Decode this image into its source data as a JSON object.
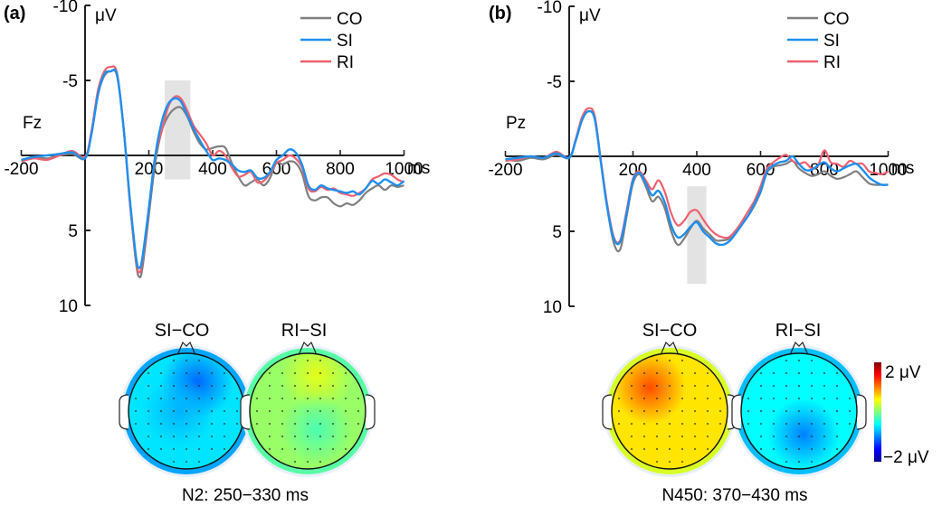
{
  "colors": {
    "CO": "#7f7f7f",
    "SI": "#1e8fef",
    "RI": "#f0606f",
    "shade": "#e3e3e3",
    "axis": "#222222"
  },
  "chart_data": [
    {
      "type": "line",
      "panel": "(a)",
      "electrode": "Fz",
      "xlabel": "ms",
      "ylabel": "μV",
      "xlim": [
        -200,
        1000
      ],
      "ylim": [
        -10,
        10
      ],
      "y_inverted": true,
      "x_ticks": [
        -200,
        0,
        200,
        400,
        600,
        800,
        1000
      ],
      "x_tick_labels": [
        "-200",
        "",
        "200",
        "400",
        "600",
        "800",
        "1000"
      ],
      "y_ticks": [
        -10,
        -5,
        0,
        5,
        10
      ],
      "y_tick_labels": [
        "-10",
        "-5",
        "",
        "5",
        "10"
      ],
      "shaded_window_ms": [
        250,
        330
      ],
      "shaded_window_uv": [
        -5,
        1.6
      ],
      "legend": [
        "CO",
        "SI",
        "RI"
      ],
      "legend_position": "top-right",
      "x": [
        -200,
        -160,
        -120,
        -80,
        -40,
        0,
        20,
        40,
        60,
        80,
        100,
        120,
        140,
        160,
        170,
        180,
        200,
        220,
        240,
        260,
        280,
        300,
        320,
        340,
        360,
        380,
        400,
        420,
        440,
        460,
        480,
        500,
        520,
        540,
        560,
        580,
        600,
        620,
        640,
        660,
        680,
        700,
        720,
        740,
        760,
        780,
        800,
        820,
        840,
        860,
        880,
        900,
        920,
        940,
        960,
        980,
        1000
      ],
      "series": [
        {
          "name": "CO",
          "values": [
            0.3,
            0.1,
            0.2,
            0,
            -0.1,
            0.2,
            -1.5,
            -4.0,
            -5.3,
            -5.6,
            -5.3,
            -2.0,
            3.0,
            7.2,
            8.1,
            7.5,
            4.0,
            0.5,
            -1.6,
            -2.6,
            -3.1,
            -3.2,
            -2.6,
            -1.6,
            -0.8,
            -0.4,
            -0.5,
            -0.6,
            -0.5,
            0.5,
            1.4,
            2.0,
            1.8,
            1.6,
            2.0,
            1.5,
            0.5,
            0.6,
            0.4,
            0.5,
            1.2,
            2.7,
            3.0,
            2.8,
            2.8,
            3.2,
            3.4,
            3.2,
            3.3,
            3.0,
            2.5,
            2.2,
            2.0,
            2.3,
            2.0,
            2.1,
            2.0
          ]
        },
        {
          "name": "SI",
          "values": [
            0.3,
            0.1,
            0.0,
            -0.1,
            -0.2,
            0.2,
            -1.4,
            -4.0,
            -5.4,
            -5.6,
            -5.4,
            -2.0,
            2.8,
            6.8,
            7.5,
            6.8,
            3.5,
            0,
            -2.2,
            -3.4,
            -3.8,
            -3.6,
            -2.7,
            -1.8,
            -1.0,
            -0.3,
            0.3,
            0.2,
            0.3,
            0.6,
            1.0,
            1.1,
            1.0,
            1.5,
            1.5,
            1.1,
            0.3,
            0,
            -0.4,
            -0.2,
            0.6,
            2.0,
            2.3,
            2.0,
            2.2,
            2.3,
            2.4,
            2.5,
            2.4,
            2.6,
            2.2,
            1.7,
            1.9,
            1.6,
            1.8,
            2.0,
            1.7
          ]
        },
        {
          "name": "RI",
          "values": [
            0.4,
            0.2,
            0.3,
            0,
            -0.3,
            0.1,
            -1.6,
            -4.3,
            -5.6,
            -5.9,
            -5.5,
            -2.0,
            3.0,
            7.0,
            7.8,
            7.0,
            3.6,
            0,
            -1.6,
            -3.2,
            -3.9,
            -3.8,
            -3.0,
            -2.0,
            -1.4,
            -0.8,
            0,
            -0.3,
            0,
            0.8,
            1.4,
            1.3,
            1.1,
            1.8,
            1.7,
            1.2,
            0.5,
            0.3,
            0,
            0.2,
            0.8,
            2.2,
            2.4,
            2.1,
            2.3,
            2.2,
            2.5,
            2.6,
            2.7,
            2.5,
            2.2,
            1.6,
            1.4,
            1.2,
            1.3,
            1.6,
            1.8
          ]
        }
      ]
    },
    {
      "type": "line",
      "panel": "(b)",
      "electrode": "Pz",
      "xlabel": "ms",
      "ylabel": "μV",
      "xlim": [
        -200,
        1000
      ],
      "ylim": [
        -10,
        10
      ],
      "y_inverted": true,
      "x_ticks": [
        -200,
        0,
        200,
        400,
        600,
        800,
        1000
      ],
      "x_tick_labels": [
        "-200",
        "",
        "200",
        "400",
        "600",
        "800",
        "1000"
      ],
      "y_ticks": [
        -10,
        -5,
        0,
        5,
        10
      ],
      "y_tick_labels": [
        "-10",
        "-5",
        "",
        "5",
        "10"
      ],
      "shaded_window_ms": [
        370,
        430
      ],
      "shaded_window_uv": [
        2,
        8.5
      ],
      "legend": [
        "CO",
        "SI",
        "RI"
      ],
      "legend_position": "top-right",
      "x": [
        -200,
        -160,
        -120,
        -80,
        -40,
        0,
        20,
        40,
        60,
        80,
        100,
        120,
        140,
        160,
        180,
        200,
        220,
        240,
        260,
        280,
        300,
        320,
        340,
        360,
        380,
        400,
        420,
        440,
        460,
        480,
        500,
        520,
        540,
        560,
        580,
        600,
        620,
        640,
        660,
        680,
        700,
        720,
        740,
        760,
        780,
        800,
        820,
        840,
        860,
        880,
        900,
        920,
        940,
        960,
        980,
        1000
      ],
      "series": [
        {
          "name": "CO",
          "values": [
            0.2,
            0.3,
            0.1,
            0.2,
            -0.1,
            0.1,
            -1.0,
            -2.4,
            -3.0,
            -2.5,
            0.5,
            3.5,
            5.8,
            6.2,
            4.0,
            1.8,
            1.2,
            2.0,
            3.0,
            2.7,
            3.5,
            5.0,
            5.9,
            5.5,
            4.8,
            4.3,
            4.8,
            5.2,
            5.6,
            5.6,
            5.5,
            5.0,
            4.5,
            4.0,
            3.3,
            2.4,
            1.1,
            0.7,
            0.6,
            0.5,
            0.3,
            0.8,
            1.1,
            1.3,
            1.2,
            1.0,
            1.3,
            1.5,
            1.4,
            1.2,
            1.0,
            1.4,
            1.8,
            1.9,
            1.9,
            1.9
          ]
        },
        {
          "name": "SI",
          "values": [
            0.2,
            0.1,
            0.0,
            0.1,
            -0.2,
            0.1,
            -1.0,
            -2.4,
            -3.0,
            -2.5,
            0.5,
            3.5,
            5.5,
            5.7,
            3.8,
            1.6,
            1.1,
            1.8,
            2.6,
            2.3,
            3.1,
            4.6,
            5.4,
            5.2,
            4.7,
            4.4,
            5.0,
            5.4,
            5.8,
            5.9,
            5.7,
            5.2,
            4.6,
            4.0,
            3.2,
            2.3,
            1.0,
            0.6,
            0.4,
            0.3,
            0.0,
            0.5,
            0.9,
            0.9,
            0.6,
            0.4,
            0.8,
            1.0,
            0.8,
            0.6,
            0.5,
            0.9,
            1.4,
            1.7,
            1.9,
            1.9
          ]
        },
        {
          "name": "RI",
          "values": [
            0.3,
            0.2,
            0.0,
            0.1,
            -0.3,
            0.1,
            -1.1,
            -2.6,
            -3.2,
            -2.7,
            0.4,
            3.3,
            5.4,
            5.6,
            3.6,
            1.5,
            1.0,
            1.6,
            2.2,
            1.6,
            2.4,
            3.8,
            4.6,
            4.3,
            3.7,
            3.6,
            4.2,
            4.8,
            5.2,
            5.4,
            5.4,
            5.0,
            4.4,
            3.7,
            3.0,
            2.0,
            0.8,
            0.4,
            0.1,
            -0.1,
            0.3,
            0.5,
            0.4,
            0.8,
            0.6,
            -0.4,
            0.4,
            0.5,
            0.7,
            0.3,
            0.5,
            0.5,
            1.0,
            1.1,
            1.2,
            1.0
          ]
        }
      ]
    },
    {
      "type": "heatmap",
      "subtype": "topographic-map",
      "panel": "(a)",
      "caption": "N2: 250−330 ms",
      "maps": [
        {
          "title": "SI−CO",
          "overall_uv": -0.6,
          "hotspots": [
            {
              "site": "right-frontal",
              "uv": -1.1
            },
            {
              "site": "central",
              "uv": -0.8
            }
          ]
        },
        {
          "title": "RI−SI",
          "overall_uv": 0.1,
          "hotspots": [
            {
              "site": "frontal",
              "uv": 0.4
            },
            {
              "site": "central-parietal",
              "uv": -0.2
            }
          ]
        }
      ]
    },
    {
      "type": "heatmap",
      "subtype": "topographic-map",
      "panel": "(b)",
      "caption": "N450: 370−430 ms",
      "maps": [
        {
          "title": "SI−CO",
          "overall_uv": 0.6,
          "hotspots": [
            {
              "site": "left-frontal",
              "uv": 1.2
            }
          ]
        },
        {
          "title": "RI−SI",
          "overall_uv": -0.5,
          "hotspots": [
            {
              "site": "parietal",
              "uv": -1.0
            }
          ]
        }
      ],
      "colorbar": {
        "min_label": "−2 μV",
        "max_label": "2 μV",
        "range": [
          -2,
          2
        ],
        "colormap": "jet"
      }
    }
  ],
  "panels": [
    {
      "label": "(a)",
      "electrode": "Fz",
      "unit": "μV",
      "xunit": "ms"
    },
    {
      "label": "(b)",
      "electrode": "Pz",
      "unit": "μV",
      "xunit": "ms"
    }
  ],
  "topomaps": {
    "a": {
      "titles": [
        "SI−CO",
        "RI−SI"
      ],
      "caption": "N2: 250−330 ms"
    },
    "b": {
      "titles": [
        "SI−CO",
        "RI−SI"
      ],
      "caption": "N450: 370−430 ms"
    },
    "colorbar": {
      "max_label": "2 μV",
      "min_label": "−2 μV"
    }
  }
}
